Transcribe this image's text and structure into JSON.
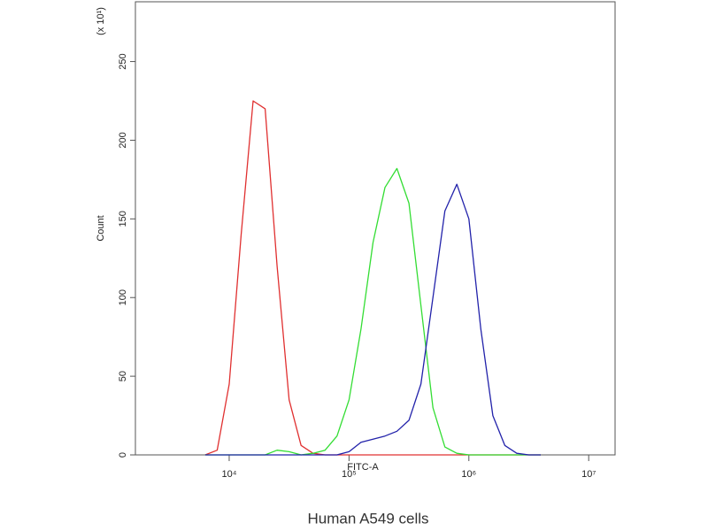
{
  "chart_data": {
    "type": "line",
    "title": "Human A549 cells",
    "xlabel": "FITC-A",
    "ylabel": "Count",
    "y_multiplier": "(x 10¹)",
    "xscale": "log",
    "xlim": [
      1650,
      16600000
    ],
    "ylim": [
      0,
      288
    ],
    "xticks": [
      {
        "value": 10000,
        "label": "10⁴"
      },
      {
        "value": 100000,
        "label": "10⁵"
      },
      {
        "value": 1000000,
        "label": "10⁶"
      },
      {
        "value": 10000000,
        "label": "10⁷"
      }
    ],
    "yticks": [
      0,
      50,
      100,
      150,
      200,
      250
    ],
    "x": [
      6310,
      7943,
      10000,
      12589,
      15849,
      19953,
      25119,
      31623,
      39811,
      50119,
      63096,
      79433,
      100000,
      125893,
      158489,
      199526,
      251189,
      316228,
      398107,
      501187,
      630957,
      794328,
      1000000,
      1258925,
      1584893,
      1995262,
      2511886,
      3162278,
      3981072
    ],
    "series": [
      {
        "color": "#e03030",
        "values": [
          0,
          3,
          45,
          140,
          225,
          220,
          120,
          35,
          6,
          1,
          0,
          0,
          0,
          0,
          0,
          0,
          0,
          0,
          0,
          0,
          0,
          0,
          0,
          0,
          0,
          0,
          0,
          0,
          0
        ]
      },
      {
        "color": "#33dd33",
        "values": [
          0,
          0,
          0,
          0,
          0,
          0,
          3,
          2,
          0,
          1,
          3,
          12,
          35,
          80,
          135,
          170,
          182,
          160,
          95,
          30,
          5,
          1,
          0,
          0,
          0,
          0,
          0,
          0,
          0
        ]
      },
      {
        "color": "#2222aa",
        "values": [
          0,
          0,
          0,
          0,
          0,
          0,
          0,
          0,
          0,
          0,
          0,
          0,
          2,
          8,
          10,
          12,
          15,
          22,
          45,
          100,
          155,
          172,
          150,
          80,
          25,
          6,
          1,
          0,
          0
        ]
      }
    ]
  }
}
